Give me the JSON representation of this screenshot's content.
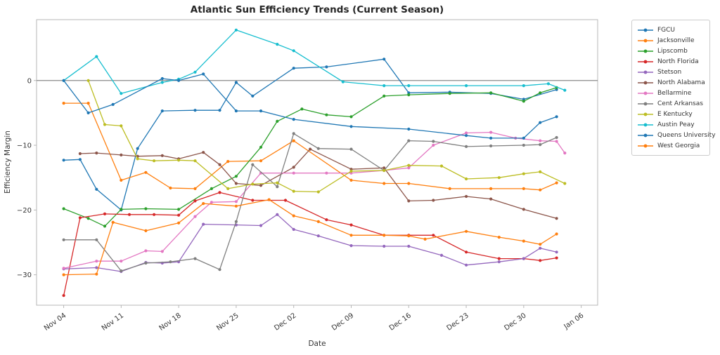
{
  "title": "Atlantic Sun Efficiency Trends (Current Season)",
  "xlabel": "Date",
  "ylabel": "Efficiency Margin",
  "chart_data": {
    "type": "line",
    "title": "Atlantic Sun Efficiency Trends (Current Season)",
    "xlabel": "Date",
    "ylabel": "Efficiency Margin",
    "x_unit": "days since Nov 04",
    "xlim": [
      -3.3,
      65
    ],
    "ylim": [
      -34.7,
      9.4
    ],
    "x_tick_days": [
      0,
      7,
      14,
      21,
      28,
      35,
      42,
      49,
      56,
      63
    ],
    "x_tick_labels": [
      "Nov 04",
      "Nov 11",
      "Nov 18",
      "Nov 25",
      "Dec 02",
      "Dec 09",
      "Dec 16",
      "Dec 23",
      "Dec 30",
      "Jan 06"
    ],
    "y_ticks": [
      0,
      -10,
      -20,
      -30
    ],
    "zero_line": true,
    "grid": false,
    "legend_position": "outside-right",
    "series": [
      {
        "name": "FGCU",
        "color": "#1f77b4",
        "x": [
          0,
          2,
          4,
          7,
          9,
          12,
          16,
          19,
          21,
          23,
          28,
          32,
          39,
          42,
          47,
          52,
          56,
          60
        ],
        "y": [
          -12.3,
          -12.2,
          -16.8,
          -20.0,
          -10.5,
          -4.7,
          -4.6,
          -4.6,
          -0.3,
          -2.4,
          1.9,
          2.1,
          3.3,
          -1.9,
          -1.8,
          -2.0,
          -2.9,
          -1.4
        ]
      },
      {
        "name": "Jacksonville",
        "color": "#ff7f0e",
        "x": [
          0,
          3,
          7,
          10,
          13,
          16,
          20,
          24,
          28,
          35,
          39,
          42,
          47,
          52,
          56,
          58,
          60
        ],
        "y": [
          -3.5,
          -3.5,
          -15.4,
          -14.2,
          -16.6,
          -16.7,
          -12.5,
          -12.4,
          -9.3,
          -15.4,
          -15.9,
          -15.9,
          -16.7,
          -16.7,
          -16.7,
          -16.9,
          -15.8
        ]
      },
      {
        "name": "Lipscomb",
        "color": "#2ca02c",
        "x": [
          0,
          3,
          5,
          7,
          10,
          14,
          18,
          21,
          24,
          26,
          29,
          32,
          35,
          39,
          42,
          47,
          52,
          56,
          58,
          60
        ],
        "y": [
          -19.8,
          -21.3,
          -22.5,
          -19.9,
          -19.8,
          -19.9,
          -16.7,
          -14.8,
          -10.3,
          -6.3,
          -4.4,
          -5.3,
          -5.6,
          -2.4,
          -2.2,
          -2.0,
          -1.9,
          -3.2,
          -1.9,
          -1.1
        ]
      },
      {
        "name": "North Florida",
        "color": "#d62728",
        "x": [
          0,
          2,
          5,
          8,
          11,
          14,
          16,
          19,
          23,
          27,
          32,
          35,
          39,
          42,
          45,
          49,
          53,
          56,
          58,
          60
        ],
        "y": [
          -33.2,
          -21.2,
          -20.6,
          -20.7,
          -20.7,
          -20.8,
          -18.6,
          -17.3,
          -18.5,
          -18.5,
          -21.5,
          -22.3,
          -23.9,
          -23.9,
          -23.9,
          -26.5,
          -27.5,
          -27.5,
          -27.8,
          -27.4
        ]
      },
      {
        "name": "Stetson",
        "color": "#9467bd",
        "x": [
          0,
          4,
          7,
          10,
          12,
          14,
          17,
          21,
          24,
          26,
          28,
          31,
          35,
          39,
          42,
          46,
          49,
          53,
          56,
          58,
          60
        ],
        "y": [
          -29.1,
          -28.9,
          -29.5,
          -28.1,
          -28.2,
          -28.0,
          -22.2,
          -22.3,
          -22.4,
          -20.7,
          -23.0,
          -24.0,
          -25.5,
          -25.6,
          -25.6,
          -27.0,
          -28.5,
          -28.0,
          -27.5,
          -25.9,
          -26.5
        ]
      },
      {
        "name": "North Alabama",
        "color": "#8c564b",
        "x": [
          2,
          4,
          7,
          9,
          12,
          14,
          17,
          19,
          21,
          24,
          28,
          30,
          35,
          39,
          42,
          45,
          49,
          52,
          56,
          60
        ],
        "y": [
          -11.3,
          -11.2,
          -11.5,
          -11.7,
          -11.6,
          -12.1,
          -11.1,
          -13.0,
          -15.9,
          -16.2,
          -13.4,
          -10.6,
          -13.7,
          -13.5,
          -18.6,
          -18.5,
          -17.9,
          -18.3,
          -19.9,
          -21.3
        ]
      },
      {
        "name": "Bellarmine",
        "color": "#e377c2",
        "x": [
          0,
          4,
          7,
          10,
          12,
          16,
          18,
          21,
          24,
          28,
          32,
          35,
          39,
          42,
          45,
          49,
          52,
          55,
          58,
          60,
          61
        ],
        "y": [
          -29.0,
          -27.9,
          -27.9,
          -26.3,
          -26.4,
          -21.0,
          -18.8,
          -18.7,
          -14.3,
          -14.3,
          -14.3,
          -14.3,
          -13.9,
          -13.5,
          -10.0,
          -8.1,
          -8.0,
          -8.9,
          -9.3,
          -9.4,
          -11.2
        ]
      },
      {
        "name": "Cent Arkansas",
        "color": "#7f7f7f",
        "x": [
          0,
          4,
          7,
          10,
          13,
          16,
          19,
          21,
          23,
          26,
          28,
          31,
          35,
          39,
          42,
          45,
          49,
          52,
          56,
          58,
          60
        ],
        "y": [
          -24.6,
          -24.6,
          -29.4,
          -28.2,
          -28.0,
          -27.5,
          -29.2,
          -21.8,
          -13.0,
          -16.4,
          -8.2,
          -10.5,
          -10.6,
          -13.9,
          -9.3,
          -9.4,
          -10.2,
          -10.1,
          -10.0,
          -9.9,
          -8.8
        ]
      },
      {
        "name": "E Kentucky",
        "color": "#bcbd22",
        "x": [
          3,
          5,
          7,
          9,
          11,
          14,
          16,
          20,
          23,
          26,
          28,
          31,
          35,
          39,
          42,
          46,
          49,
          53,
          56,
          58,
          61
        ],
        "y": [
          0.0,
          -6.8,
          -7.0,
          -12.1,
          -12.4,
          -12.3,
          -12.4,
          -16.7,
          -16.0,
          -15.8,
          -17.1,
          -17.2,
          -14.0,
          -13.9,
          -13.1,
          -13.2,
          -15.2,
          -15.0,
          -14.4,
          -14.1,
          -15.9
        ]
      },
      {
        "name": "Austin Peay",
        "color": "#17becf",
        "x": [
          0,
          4,
          7,
          12,
          14,
          16,
          21,
          26,
          28,
          34,
          39,
          42,
          49,
          56,
          59,
          61
        ],
        "y": [
          0.0,
          3.7,
          -2.0,
          -0.3,
          0.2,
          1.3,
          7.8,
          5.6,
          4.6,
          -0.2,
          -0.8,
          -0.8,
          -0.8,
          -0.8,
          -0.5,
          -1.5
        ]
      },
      {
        "name": "Queens University",
        "color": "#1f77b4",
        "x": [
          0,
          3,
          6,
          12,
          14,
          17,
          21,
          24,
          28,
          35,
          42,
          49,
          52,
          56,
          58,
          60
        ],
        "y": [
          0.0,
          -5.0,
          -3.7,
          0.3,
          0.0,
          1.0,
          -4.7,
          -4.7,
          -6.0,
          -7.1,
          -7.5,
          -8.5,
          -8.9,
          -8.9,
          -6.5,
          -5.6
        ]
      },
      {
        "name": "West Georgia",
        "color": "#ff7f0e",
        "x": [
          0,
          4,
          6,
          10,
          14,
          17,
          21,
          25,
          28,
          31,
          35,
          39,
          42,
          44,
          49,
          53,
          56,
          58,
          60
        ],
        "y": [
          -30.0,
          -29.9,
          -21.9,
          -23.2,
          -22.0,
          -19.0,
          -19.4,
          -18.4,
          -20.9,
          -21.8,
          -23.9,
          -23.9,
          -24.0,
          -24.5,
          -23.3,
          -24.2,
          -24.8,
          -25.3,
          -23.7
        ]
      }
    ]
  }
}
